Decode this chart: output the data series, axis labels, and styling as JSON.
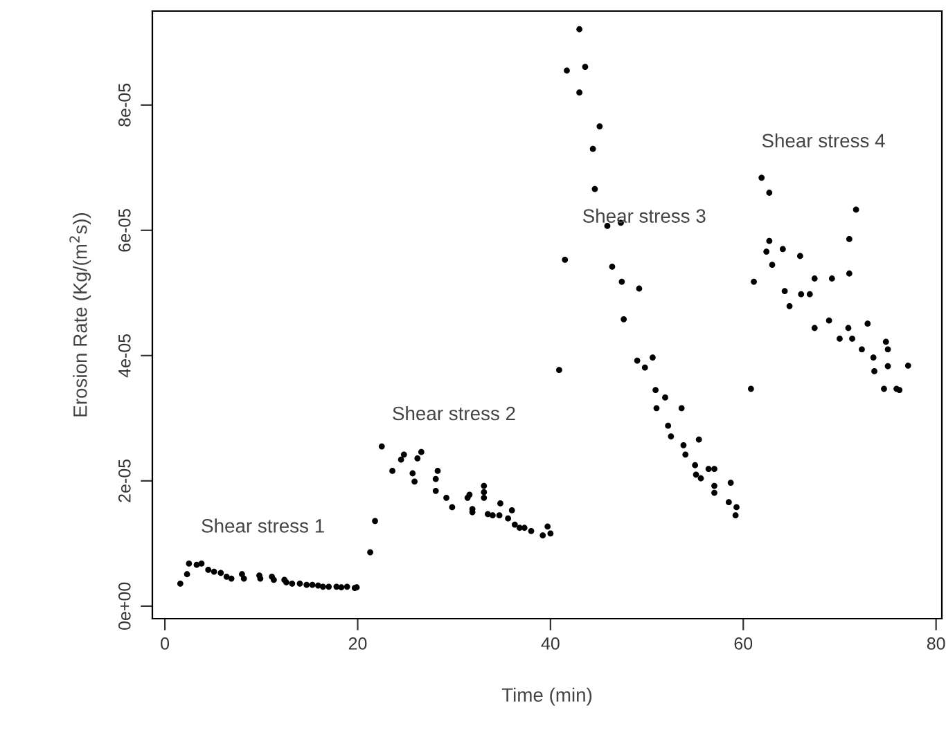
{
  "chart_data": {
    "type": "scatter",
    "xlabel": "Time (min)",
    "ylabel": "Erosion Rate (Kg/(m$^{2}$s))",
    "xlim": [
      -1.3,
      80.6
    ],
    "ylim": [
      -2e-06,
      9.5e-05
    ],
    "xticks": [
      0,
      20,
      40,
      60,
      80
    ],
    "yticks": [
      {
        "value": 0,
        "label": "0e+00"
      },
      {
        "value": 2e-05,
        "label": "2e-05"
      },
      {
        "value": 4e-05,
        "label": "4e-05"
      },
      {
        "value": 6e-05,
        "label": "6e-05"
      },
      {
        "value": 8e-05,
        "label": "8e-05"
      }
    ],
    "marker": "circle",
    "grid": false,
    "annotations": [
      "Shear stress 1",
      "Shear stress 2",
      "Shear stress 3",
      "Shear stress 4"
    ],
    "series": [
      {
        "color": "#000000",
        "x": [
          1.6,
          2.3,
          2.5,
          3.3,
          3.8,
          4.5,
          5.1,
          5.8,
          6.4,
          6.9,
          8.0,
          8.2,
          9.8,
          9.9,
          11.1,
          11.3,
          12.4,
          12.6,
          13.2,
          14.0,
          14.7,
          15.3,
          15.9,
          16.4,
          17.0,
          17.8,
          18.3,
          18.9,
          19.7,
          19.9,
          21.3,
          21.8,
          22.5,
          23.6,
          24.5,
          24.8,
          25.7,
          25.9,
          26.2,
          26.6,
          28.1,
          28.3,
          28.1,
          29.2,
          29.8,
          31.4,
          31.6,
          31.9,
          31.9,
          33.1,
          33.1,
          33.1,
          33.5,
          34.0,
          34.7,
          34.8,
          35.6,
          36.0,
          36.3,
          36.8,
          37.3,
          38.0,
          39.2,
          39.7,
          40.0,
          40.9,
          41.5,
          41.7,
          43.0,
          43.6,
          43.0,
          45.1,
          44.4,
          44.6,
          45.9,
          47.3,
          46.4,
          47.4,
          49.2,
          47.6,
          49.0,
          49.8,
          50.6,
          50.9,
          51.9,
          51.0,
          53.6,
          52.2,
          52.5,
          53.8,
          54.0,
          55.4,
          55.0,
          55.1,
          55.6,
          56.4,
          57.0,
          57.0,
          57.0,
          58.7,
          58.5,
          59.3,
          59.2,
          60.8,
          61.1,
          61.9,
          62.7,
          62.7,
          62.4,
          63.0,
          64.1,
          65.9,
          64.3,
          64.8,
          66.0,
          66.9,
          67.4,
          69.2,
          71.0,
          71.0,
          71.7,
          67.4,
          68.9,
          70.0,
          70.9,
          71.3,
          72.3,
          72.9,
          73.5,
          73.6,
          74.8,
          75.0,
          75.0,
          74.6,
          75.9,
          76.2,
          77.1
        ],
        "values": [
          3.6e-06,
          5.1e-06,
          6.8e-06,
          6.6e-06,
          6.8e-06,
          5.8e-06,
          5.5e-06,
          5.3e-06,
          4.7e-06,
          4.4e-06,
          5.1e-06,
          4.4e-06,
          4.9e-06,
          4.4e-06,
          4.7e-06,
          4.2e-06,
          4.2e-06,
          3.8e-06,
          3.6e-06,
          3.6e-06,
          3.4e-06,
          3.4e-06,
          3.3e-06,
          3.1e-06,
          3.1e-06,
          3.1e-06,
          3e-06,
          3.1e-06,
          2.9e-06,
          3e-06,
          8.6e-06,
          1.36e-05,
          2.55e-05,
          2.16e-05,
          2.34e-05,
          2.42e-05,
          2.12e-05,
          1.99e-05,
          2.36e-05,
          2.46e-05,
          2.03e-05,
          2.16e-05,
          1.84e-05,
          1.73e-05,
          1.58e-05,
          1.73e-05,
          1.78e-05,
          1.55e-05,
          1.5e-05,
          1.92e-05,
          1.82e-05,
          1.73e-05,
          1.47e-05,
          1.45e-05,
          1.45e-05,
          1.64e-05,
          1.4e-05,
          1.53e-05,
          1.3e-05,
          1.25e-05,
          1.25e-05,
          1.2e-05,
          1.13e-05,
          1.27e-05,
          1.16e-05,
          3.77e-05,
          5.53e-05,
          8.55e-05,
          9.21e-05,
          8.61e-05,
          8.2e-05,
          7.66e-05,
          7.3e-05,
          6.66e-05,
          6.07e-05,
          6.12e-05,
          5.42e-05,
          5.18e-05,
          5.07e-05,
          4.58e-05,
          3.92e-05,
          3.81e-05,
          3.97e-05,
          3.45e-05,
          3.33e-05,
          3.16e-05,
          3.16e-05,
          2.88e-05,
          2.71e-05,
          2.57e-05,
          2.42e-05,
          2.66e-05,
          2.25e-05,
          2.1e-05,
          2.04e-05,
          2.19e-05,
          2.19e-05,
          1.92e-05,
          1.81e-05,
          1.97e-05,
          1.66e-05,
          1.58e-05,
          1.45e-05,
          3.47e-05,
          5.18e-05,
          6.84e-05,
          6.6e-05,
          5.83e-05,
          5.66e-05,
          5.45e-05,
          5.7e-05,
          5.59e-05,
          5.03e-05,
          4.79e-05,
          4.98e-05,
          4.98e-05,
          5.23e-05,
          5.23e-05,
          5.86e-05,
          5.31e-05,
          6.33e-05,
          4.44e-05,
          4.56e-05,
          4.27e-05,
          4.44e-05,
          4.27e-05,
          4.1e-05,
          4.51e-05,
          3.97e-05,
          3.75e-05,
          4.22e-05,
          4.1e-05,
          3.83e-05,
          3.47e-05,
          3.47e-05,
          3.45e-05,
          3.84e-05
        ]
      }
    ]
  }
}
